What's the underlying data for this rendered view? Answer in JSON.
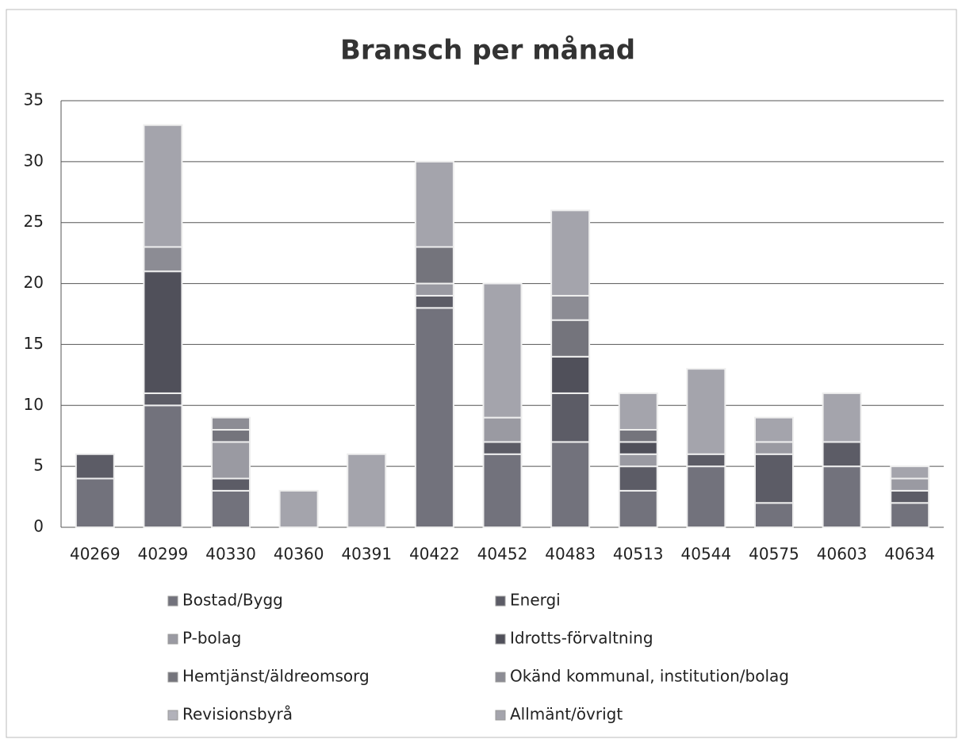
{
  "chart_data": {
    "type": "stacked_bar",
    "title": "Bransch per månad",
    "categories": [
      "40269",
      "40299",
      "40330",
      "40360",
      "40391",
      "40422",
      "40452",
      "40483",
      "40513",
      "40544",
      "40575",
      "40603",
      "40634"
    ],
    "series": [
      {
        "name": "Bostad/Bygg",
        "color": "#72727c",
        "values": [
          4,
          10,
          3,
          0,
          0,
          18,
          6,
          7,
          3,
          5,
          2,
          5,
          2
        ]
      },
      {
        "name": "Energi",
        "color": "#5c5c66",
        "values": [
          2,
          1,
          1,
          0,
          0,
          1,
          1,
          4,
          2,
          1,
          4,
          2,
          1
        ]
      },
      {
        "name": "P-bolag",
        "color": "#9a9aa2",
        "values": [
          0,
          0,
          3,
          0,
          0,
          1,
          2,
          0,
          1,
          0,
          1,
          0,
          1
        ]
      },
      {
        "name": "Idrotts-förvaltning",
        "color": "#50505a",
        "values": [
          0,
          10,
          0,
          0,
          0,
          0,
          0,
          3,
          1,
          0,
          0,
          0,
          0
        ]
      },
      {
        "name": "Hemtjänst/äldreomsorg",
        "color": "#74747c",
        "values": [
          0,
          0,
          1,
          0,
          0,
          3,
          0,
          3,
          1,
          0,
          0,
          0,
          0
        ]
      },
      {
        "name": "Okänd kommunal, institution/bolag",
        "color": "#8c8c94",
        "values": [
          0,
          2,
          1,
          0,
          0,
          0,
          0,
          2,
          0,
          0,
          0,
          0,
          0
        ]
      },
      {
        "name": "Revisionsbyrå",
        "color": "#b2b2ba",
        "values": [
          0,
          0,
          0,
          0,
          0,
          0,
          0,
          0,
          0,
          0,
          0,
          0,
          0
        ]
      },
      {
        "name": "Allmänt/övrigt",
        "color": "#a4a4ac",
        "values": [
          0,
          10,
          0,
          3,
          6,
          7,
          11,
          7,
          3,
          7,
          2,
          4,
          1
        ]
      }
    ],
    "ylim": [
      0,
      35
    ],
    "yticks": [
      0,
      5,
      10,
      15,
      20,
      25,
      30,
      35
    ],
    "grid": true
  }
}
